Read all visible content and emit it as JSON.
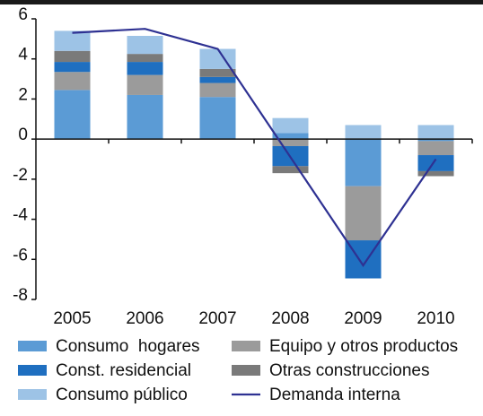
{
  "chart_data": {
    "type": "bar",
    "stacked": true,
    "categories": [
      "2005",
      "2006",
      "2007",
      "2008",
      "2009",
      "2010"
    ],
    "ylim": [
      -8,
      6
    ],
    "yticks": [
      -8,
      -6,
      -4,
      -2,
      0,
      2,
      4,
      6
    ],
    "series": [
      {
        "name": "Consumo  hogares",
        "color": "#5b9bd5",
        "values": [
          2.45,
          2.2,
          2.1,
          0.3,
          -2.35,
          -0.1
        ]
      },
      {
        "name": "Equipo y otros productos",
        "color": "#9b9b9b",
        "values": [
          0.9,
          1.0,
          0.7,
          -0.35,
          -2.7,
          -0.7
        ]
      },
      {
        "name": "Const. residencial",
        "color": "#1f6fc0",
        "values": [
          0.5,
          0.65,
          0.3,
          -1.0,
          -1.9,
          -0.8
        ]
      },
      {
        "name": "Otras construcciones",
        "color": "#7a7a7a",
        "values": [
          0.55,
          0.4,
          0.4,
          -0.35,
          0,
          -0.25
        ]
      },
      {
        "name": "Consumo público",
        "color": "#9dc3e6",
        "values": [
          1.0,
          0.9,
          1.0,
          0.75,
          0.7,
          0.7
        ]
      },
      {
        "name": "Demanda interna",
        "type": "line",
        "color": "#2e3192",
        "values": [
          5.3,
          5.5,
          4.5,
          -0.9,
          -6.3,
          -1.0
        ]
      }
    ]
  }
}
